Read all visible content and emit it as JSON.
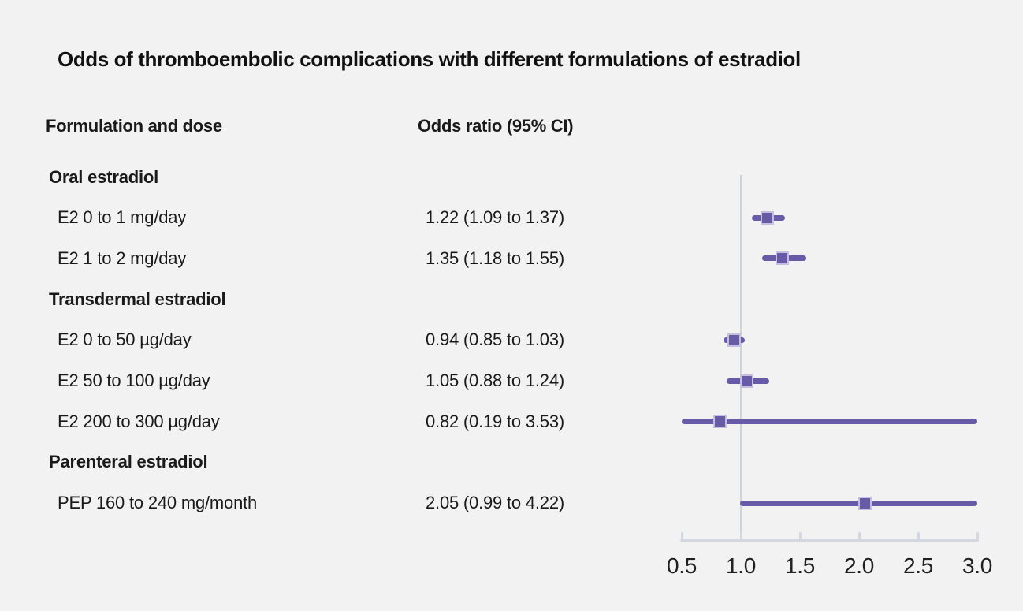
{
  "chart_data": {
    "type": "forest",
    "title": "Odds of thromboembolic complications with different formulations of estradiol",
    "columns": {
      "formulation": "Formulation and dose",
      "odds_ratio": "Odds ratio (95% CI)"
    },
    "xlim": [
      0.5,
      3.0
    ],
    "reference_x": 1.0,
    "x_ticks": [
      {
        "value": 0.5,
        "label": "0.5"
      },
      {
        "value": 1.0,
        "label": "1.0"
      },
      {
        "value": 1.5,
        "label": "1.5"
      },
      {
        "value": 2.0,
        "label": "2.0"
      },
      {
        "value": 2.5,
        "label": "2.5"
      },
      {
        "value": 3.0,
        "label": "3.0"
      }
    ],
    "rows": [
      {
        "type": "section",
        "label": "Oral estradiol"
      },
      {
        "type": "item",
        "label": "E2 0 to 1 mg/day",
        "value_text": "1.22 (1.09 to 1.37)",
        "or": 1.22,
        "ci_low": 1.09,
        "ci_high": 1.37
      },
      {
        "type": "item",
        "label": "E2 1 to 2 mg/day",
        "value_text": "1.35 (1.18 to 1.55)",
        "or": 1.35,
        "ci_low": 1.18,
        "ci_high": 1.55
      },
      {
        "type": "section",
        "label": "Transdermal estradiol"
      },
      {
        "type": "item",
        "label": "E2 0 to 50 µg/day",
        "value_text": "0.94 (0.85 to 1.03)",
        "or": 0.94,
        "ci_low": 0.85,
        "ci_high": 1.03
      },
      {
        "type": "item",
        "label": "E2 50 to 100 µg/day",
        "value_text": "1.05 (0.88 to 1.24)",
        "or": 1.05,
        "ci_low": 0.88,
        "ci_high": 1.24
      },
      {
        "type": "item",
        "label": "E2 200 to 300 µg/day",
        "value_text": "0.82 (0.19 to 3.53)",
        "or": 0.82,
        "ci_low": 0.19,
        "ci_high": 3.53
      },
      {
        "type": "section",
        "label": "Parenteral estradiol"
      },
      {
        "type": "item",
        "label": "PEP 160 to 240 mg/month",
        "value_text": "2.05 (0.99 to 4.22)",
        "or": 2.05,
        "ci_low": 0.99,
        "ci_high": 4.22
      }
    ],
    "legend": null,
    "grid": false
  },
  "colors": {
    "background": "#f2f2f2",
    "text": "#1a1a1a",
    "marker_fill": "#675ba7",
    "marker_edge": "#c7bedf",
    "ci_line": "#675ba7",
    "axis": "#d3d8e0",
    "reference_line": "#ccd3dc"
  }
}
